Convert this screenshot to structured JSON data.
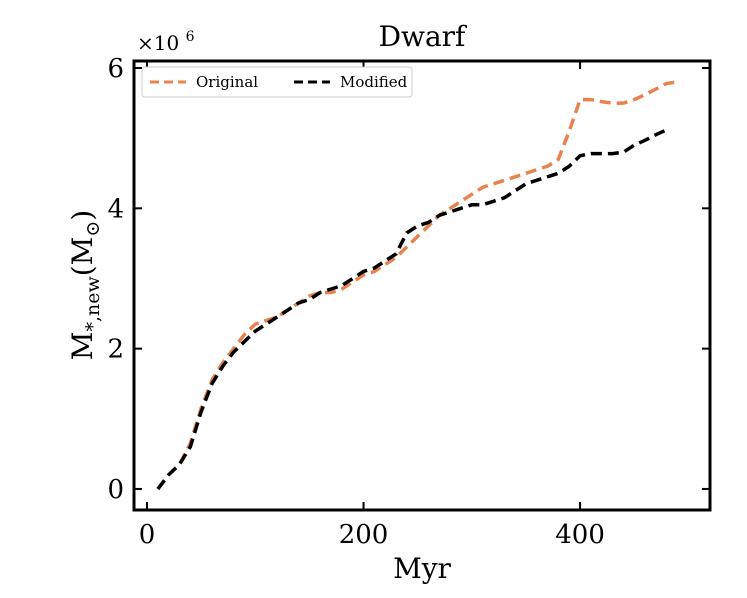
{
  "chart_data": {
    "type": "line",
    "title": "Dwarf",
    "xlabel": "Myr",
    "ylabel": {
      "base": "M",
      "subscript": "*,new",
      "unit_base": "(M",
      "unit_subscript": "⊙",
      "unit_close": ")"
    },
    "y_scale_label": {
      "base": "×10",
      "exponent": "6"
    },
    "xlim": [
      -12,
      520
    ],
    "ylim": [
      -0.3,
      6.1
    ],
    "x_ticks": [
      0,
      200,
      400
    ],
    "x_tick_labels": [
      "0",
      "200",
      "400"
    ],
    "y_ticks": [
      0,
      2,
      4,
      6
    ],
    "y_tick_labels": [
      "0",
      "2",
      "4",
      "6"
    ],
    "legend_position": "top-left",
    "series": [
      {
        "name": "Original",
        "color": "#e8834e",
        "x": [
          10,
          20,
          30,
          40,
          50,
          60,
          70,
          80,
          90,
          100,
          110,
          120,
          130,
          140,
          150,
          160,
          170,
          180,
          190,
          200,
          210,
          220,
          230,
          240,
          250,
          260,
          270,
          280,
          290,
          300,
          310,
          320,
          330,
          340,
          350,
          360,
          370,
          380,
          390,
          400,
          410,
          420,
          430,
          440,
          450,
          460,
          470,
          480,
          490
        ],
        "values": [
          0.0,
          0.2,
          0.35,
          0.65,
          1.15,
          1.55,
          1.8,
          2.0,
          2.2,
          2.35,
          2.4,
          2.45,
          2.55,
          2.65,
          2.75,
          2.8,
          2.8,
          2.85,
          2.95,
          3.05,
          3.1,
          3.2,
          3.3,
          3.45,
          3.6,
          3.75,
          3.9,
          4.0,
          4.1,
          4.2,
          4.3,
          4.35,
          4.4,
          4.45,
          4.5,
          4.55,
          4.6,
          4.7,
          5.1,
          5.55,
          5.55,
          5.52,
          5.5,
          5.5,
          5.55,
          5.62,
          5.7,
          5.78,
          5.8
        ]
      },
      {
        "name": "Modified",
        "color": "#000000",
        "x": [
          10,
          20,
          30,
          40,
          50,
          60,
          70,
          80,
          90,
          100,
          110,
          120,
          130,
          140,
          150,
          160,
          170,
          180,
          190,
          200,
          210,
          220,
          230,
          240,
          250,
          260,
          270,
          280,
          290,
          300,
          310,
          320,
          330,
          340,
          350,
          360,
          370,
          380,
          390,
          400,
          410,
          420,
          430,
          440,
          450,
          460,
          470,
          480
        ],
        "values": [
          0.0,
          0.2,
          0.35,
          0.6,
          1.1,
          1.5,
          1.75,
          1.95,
          2.1,
          2.25,
          2.35,
          2.45,
          2.55,
          2.65,
          2.7,
          2.8,
          2.85,
          2.9,
          3.0,
          3.1,
          3.15,
          3.25,
          3.35,
          3.65,
          3.75,
          3.8,
          3.9,
          3.95,
          4.0,
          4.05,
          4.05,
          4.1,
          4.15,
          4.25,
          4.35,
          4.4,
          4.45,
          4.5,
          4.6,
          4.75,
          4.78,
          4.78,
          4.78,
          4.8,
          4.9,
          4.97,
          5.05,
          5.12
        ]
      }
    ]
  }
}
